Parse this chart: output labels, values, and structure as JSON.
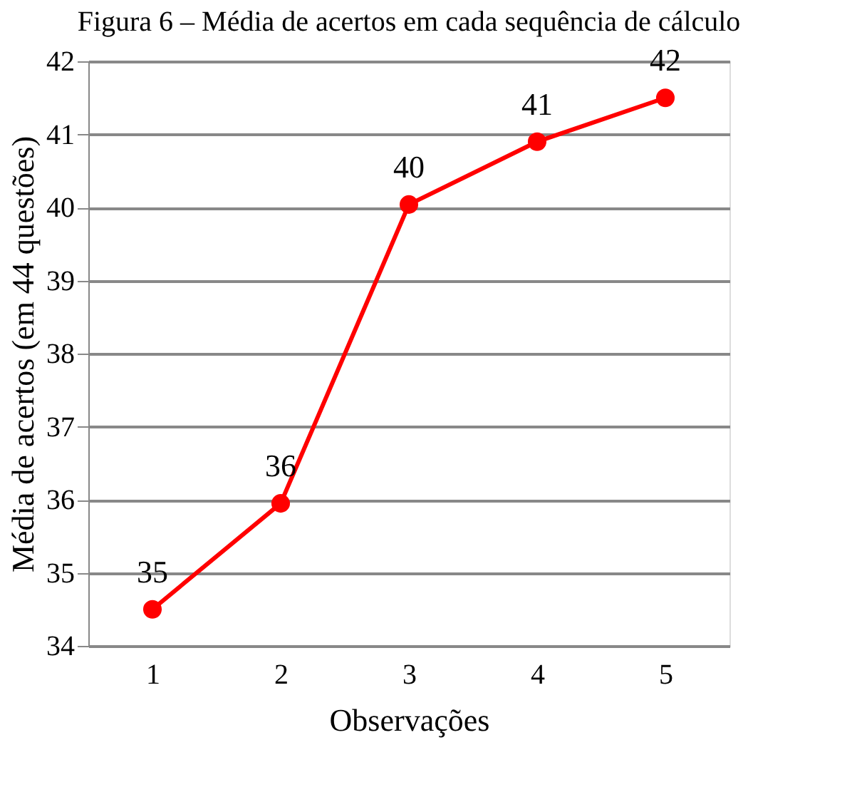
{
  "chart_data": {
    "type": "line",
    "title": "Figura 6 – Média de acertos em cada sequência de cálculo",
    "xlabel": "Observações",
    "ylabel": "Média de acertos (em 44 questões)",
    "categories": [
      "1",
      "2",
      "3",
      "4",
      "5"
    ],
    "series": [
      {
        "color": "#ff0000",
        "values": [
          34.5,
          35.95,
          40.04,
          40.9,
          41.5
        ],
        "value_labels": [
          "35",
          "36",
          "40",
          "41",
          "42"
        ]
      }
    ],
    "ylim": [
      34,
      42
    ],
    "yticks": [
      34,
      35,
      36,
      37,
      38,
      39,
      40,
      41,
      42
    ],
    "grid": "y",
    "marker": "circle",
    "line_style": "solid",
    "legend": false
  }
}
